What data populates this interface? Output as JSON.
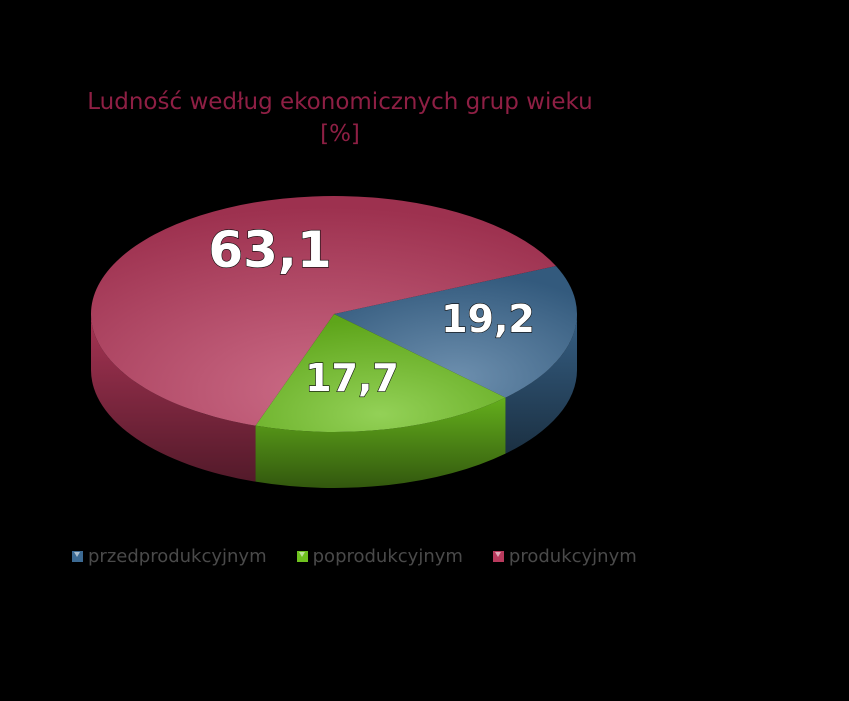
{
  "chart_data": {
    "type": "pie",
    "title_lines": [
      "Ludność według ekonomicznych grup wieku",
      "[%]"
    ],
    "categories": [
      "przedprodukcyjnym",
      "poprodukcyjnym",
      "produkcyjnym"
    ],
    "values": [
      19.2,
      17.7,
      63.1
    ],
    "data_labels": [
      "19,2",
      "17,7",
      "63,1"
    ],
    "colors": [
      "#3c6a93",
      "#6fc21f",
      "#b93a5d"
    ],
    "legend_position": "bottom",
    "style": "3d"
  }
}
